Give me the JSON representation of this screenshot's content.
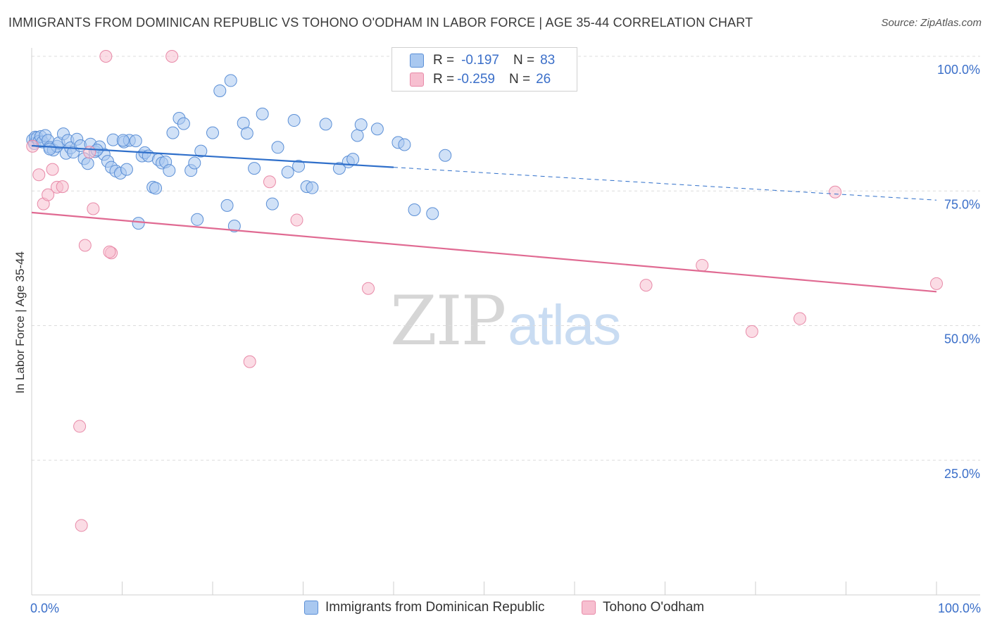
{
  "title": "IMMIGRANTS FROM DOMINICAN REPUBLIC VS TOHONO O'ODHAM IN LABOR FORCE | AGE 35-44 CORRELATION CHART",
  "source": "Source: ZipAtlas.com",
  "watermark": {
    "zip": "ZIP",
    "atlas": "atlas"
  },
  "colors": {
    "blue_fill": "#a9c8f0",
    "blue_stroke": "#5b8fd6",
    "blue_line": "#2f6fca",
    "pink_fill": "#f7bfd0",
    "pink_stroke": "#e88aa8",
    "pink_line": "#e06a92",
    "tick_text": "#3b6fc9",
    "grid": "#dcdcdc"
  },
  "stats": [
    {
      "series": "Immigrants from Dominican Republic",
      "r_label": "R = ",
      "r": "-0.197",
      "n_label": "N = ",
      "n": "83"
    },
    {
      "series": "Tohono O'odham",
      "r_label": "R = ",
      "r": "-0.259",
      "n_label": "N = ",
      "n": "26"
    }
  ],
  "legend": [
    "Immigrants from Dominican Republic",
    "Tohono O'odham"
  ],
  "chart_data": {
    "type": "scatter",
    "title": "IMMIGRANTS FROM DOMINICAN REPUBLIC VS TOHONO O'ODHAM IN LABOR FORCE | AGE 35-44 CORRELATION CHART",
    "xlabel": "",
    "ylabel": "In Labor Force | Age 35-44",
    "xlim": [
      0,
      100
    ],
    "ylim": [
      0,
      102
    ],
    "x_tick_labels": [
      "0.0%",
      "100.0%"
    ],
    "y_ticks": [
      25,
      50,
      75,
      100
    ],
    "y_tick_labels": [
      "25.0%",
      "50.0%",
      "75.0%",
      "100.0%"
    ],
    "grid": true,
    "series": [
      {
        "name": "Immigrants from Dominican Republic",
        "trend": {
          "x0": 0,
          "y0": 83.4,
          "x1": 40,
          "y1": 79.4,
          "dashed_to_x": 100,
          "dashed_to_y": 73.3
        },
        "points": [
          [
            0.1,
            84.5
          ],
          [
            0.3,
            83.8
          ],
          [
            0.4,
            85.0
          ],
          [
            0.6,
            84.9
          ],
          [
            0.8,
            84.2
          ],
          [
            1.0,
            85.1
          ],
          [
            1.2,
            84.1
          ],
          [
            1.5,
            85.3
          ],
          [
            1.8,
            84.4
          ],
          [
            2.0,
            83.1
          ],
          [
            2.4,
            82.6
          ],
          [
            2.8,
            83.3
          ],
          [
            3.0,
            83.9
          ],
          [
            3.5,
            85.6
          ],
          [
            3.8,
            82.0
          ],
          [
            4.0,
            84.4
          ],
          [
            4.3,
            83.0
          ],
          [
            4.6,
            82.2
          ],
          [
            5.0,
            84.6
          ],
          [
            5.4,
            83.4
          ],
          [
            5.8,
            81.0
          ],
          [
            6.2,
            80.1
          ],
          [
            6.5,
            83.7
          ],
          [
            7.0,
            82.3
          ],
          [
            7.5,
            83.2
          ],
          [
            8.0,
            81.8
          ],
          [
            8.4,
            80.5
          ],
          [
            8.8,
            79.4
          ],
          [
            9.0,
            84.5
          ],
          [
            9.3,
            78.7
          ],
          [
            9.8,
            78.3
          ],
          [
            10.2,
            84.1
          ],
          [
            10.5,
            79.0
          ],
          [
            10.8,
            84.4
          ],
          [
            11.5,
            84.3
          ],
          [
            11.8,
            69.0
          ],
          [
            12.2,
            81.5
          ],
          [
            12.5,
            82.1
          ],
          [
            12.9,
            81.5
          ],
          [
            13.4,
            75.7
          ],
          [
            13.7,
            75.5
          ],
          [
            14.0,
            80.8
          ],
          [
            14.4,
            80.2
          ],
          [
            14.8,
            80.4
          ],
          [
            15.2,
            78.8
          ],
          [
            15.6,
            85.8
          ],
          [
            16.3,
            88.5
          ],
          [
            16.8,
            87.5
          ],
          [
            17.6,
            78.8
          ],
          [
            18.0,
            80.2
          ],
          [
            18.3,
            69.7
          ],
          [
            18.7,
            82.4
          ],
          [
            20.0,
            85.8
          ],
          [
            20.8,
            93.6
          ],
          [
            21.6,
            72.3
          ],
          [
            22.0,
            95.5
          ],
          [
            22.4,
            68.5
          ],
          [
            23.4,
            87.6
          ],
          [
            23.8,
            85.7
          ],
          [
            24.6,
            79.2
          ],
          [
            25.5,
            89.3
          ],
          [
            26.6,
            72.6
          ],
          [
            27.2,
            83.1
          ],
          [
            28.3,
            78.5
          ],
          [
            29.0,
            88.1
          ],
          [
            29.5,
            79.6
          ],
          [
            30.4,
            75.8
          ],
          [
            31.0,
            75.6
          ],
          [
            32.5,
            87.4
          ],
          [
            34.0,
            79.2
          ],
          [
            35.0,
            80.4
          ],
          [
            35.5,
            80.9
          ],
          [
            36.0,
            85.3
          ],
          [
            36.4,
            87.3
          ],
          [
            38.2,
            86.5
          ],
          [
            40.5,
            84.0
          ],
          [
            41.2,
            83.6
          ],
          [
            42.3,
            71.5
          ],
          [
            44.3,
            70.8
          ],
          [
            45.7,
            81.6
          ],
          [
            10.1,
            84.4
          ],
          [
            7.2,
            82.6
          ],
          [
            2.0,
            82.8
          ]
        ]
      },
      {
        "name": "Tohono O'odham",
        "trend": {
          "x0": 0,
          "y0": 71.0,
          "x1": 100,
          "y1": 56.3
        },
        "points": [
          [
            0.1,
            83.3
          ],
          [
            0.8,
            78.0
          ],
          [
            1.3,
            72.6
          ],
          [
            1.8,
            74.3
          ],
          [
            2.3,
            79.0
          ],
          [
            2.8,
            75.7
          ],
          [
            3.4,
            75.8
          ],
          [
            5.3,
            31.3
          ],
          [
            5.5,
            12.9
          ],
          [
            5.9,
            64.9
          ],
          [
            6.4,
            82.2
          ],
          [
            6.8,
            71.7
          ],
          [
            8.2,
            100.0
          ],
          [
            8.8,
            63.5
          ],
          [
            15.5,
            100.0
          ],
          [
            24.1,
            43.3
          ],
          [
            26.3,
            76.7
          ],
          [
            29.3,
            69.6
          ],
          [
            37.2,
            56.9
          ],
          [
            67.9,
            57.5
          ],
          [
            74.1,
            61.2
          ],
          [
            79.6,
            48.9
          ],
          [
            84.9,
            51.3
          ],
          [
            88.8,
            74.8
          ],
          [
            100.0,
            57.8
          ],
          [
            8.6,
            63.7
          ]
        ]
      }
    ]
  }
}
